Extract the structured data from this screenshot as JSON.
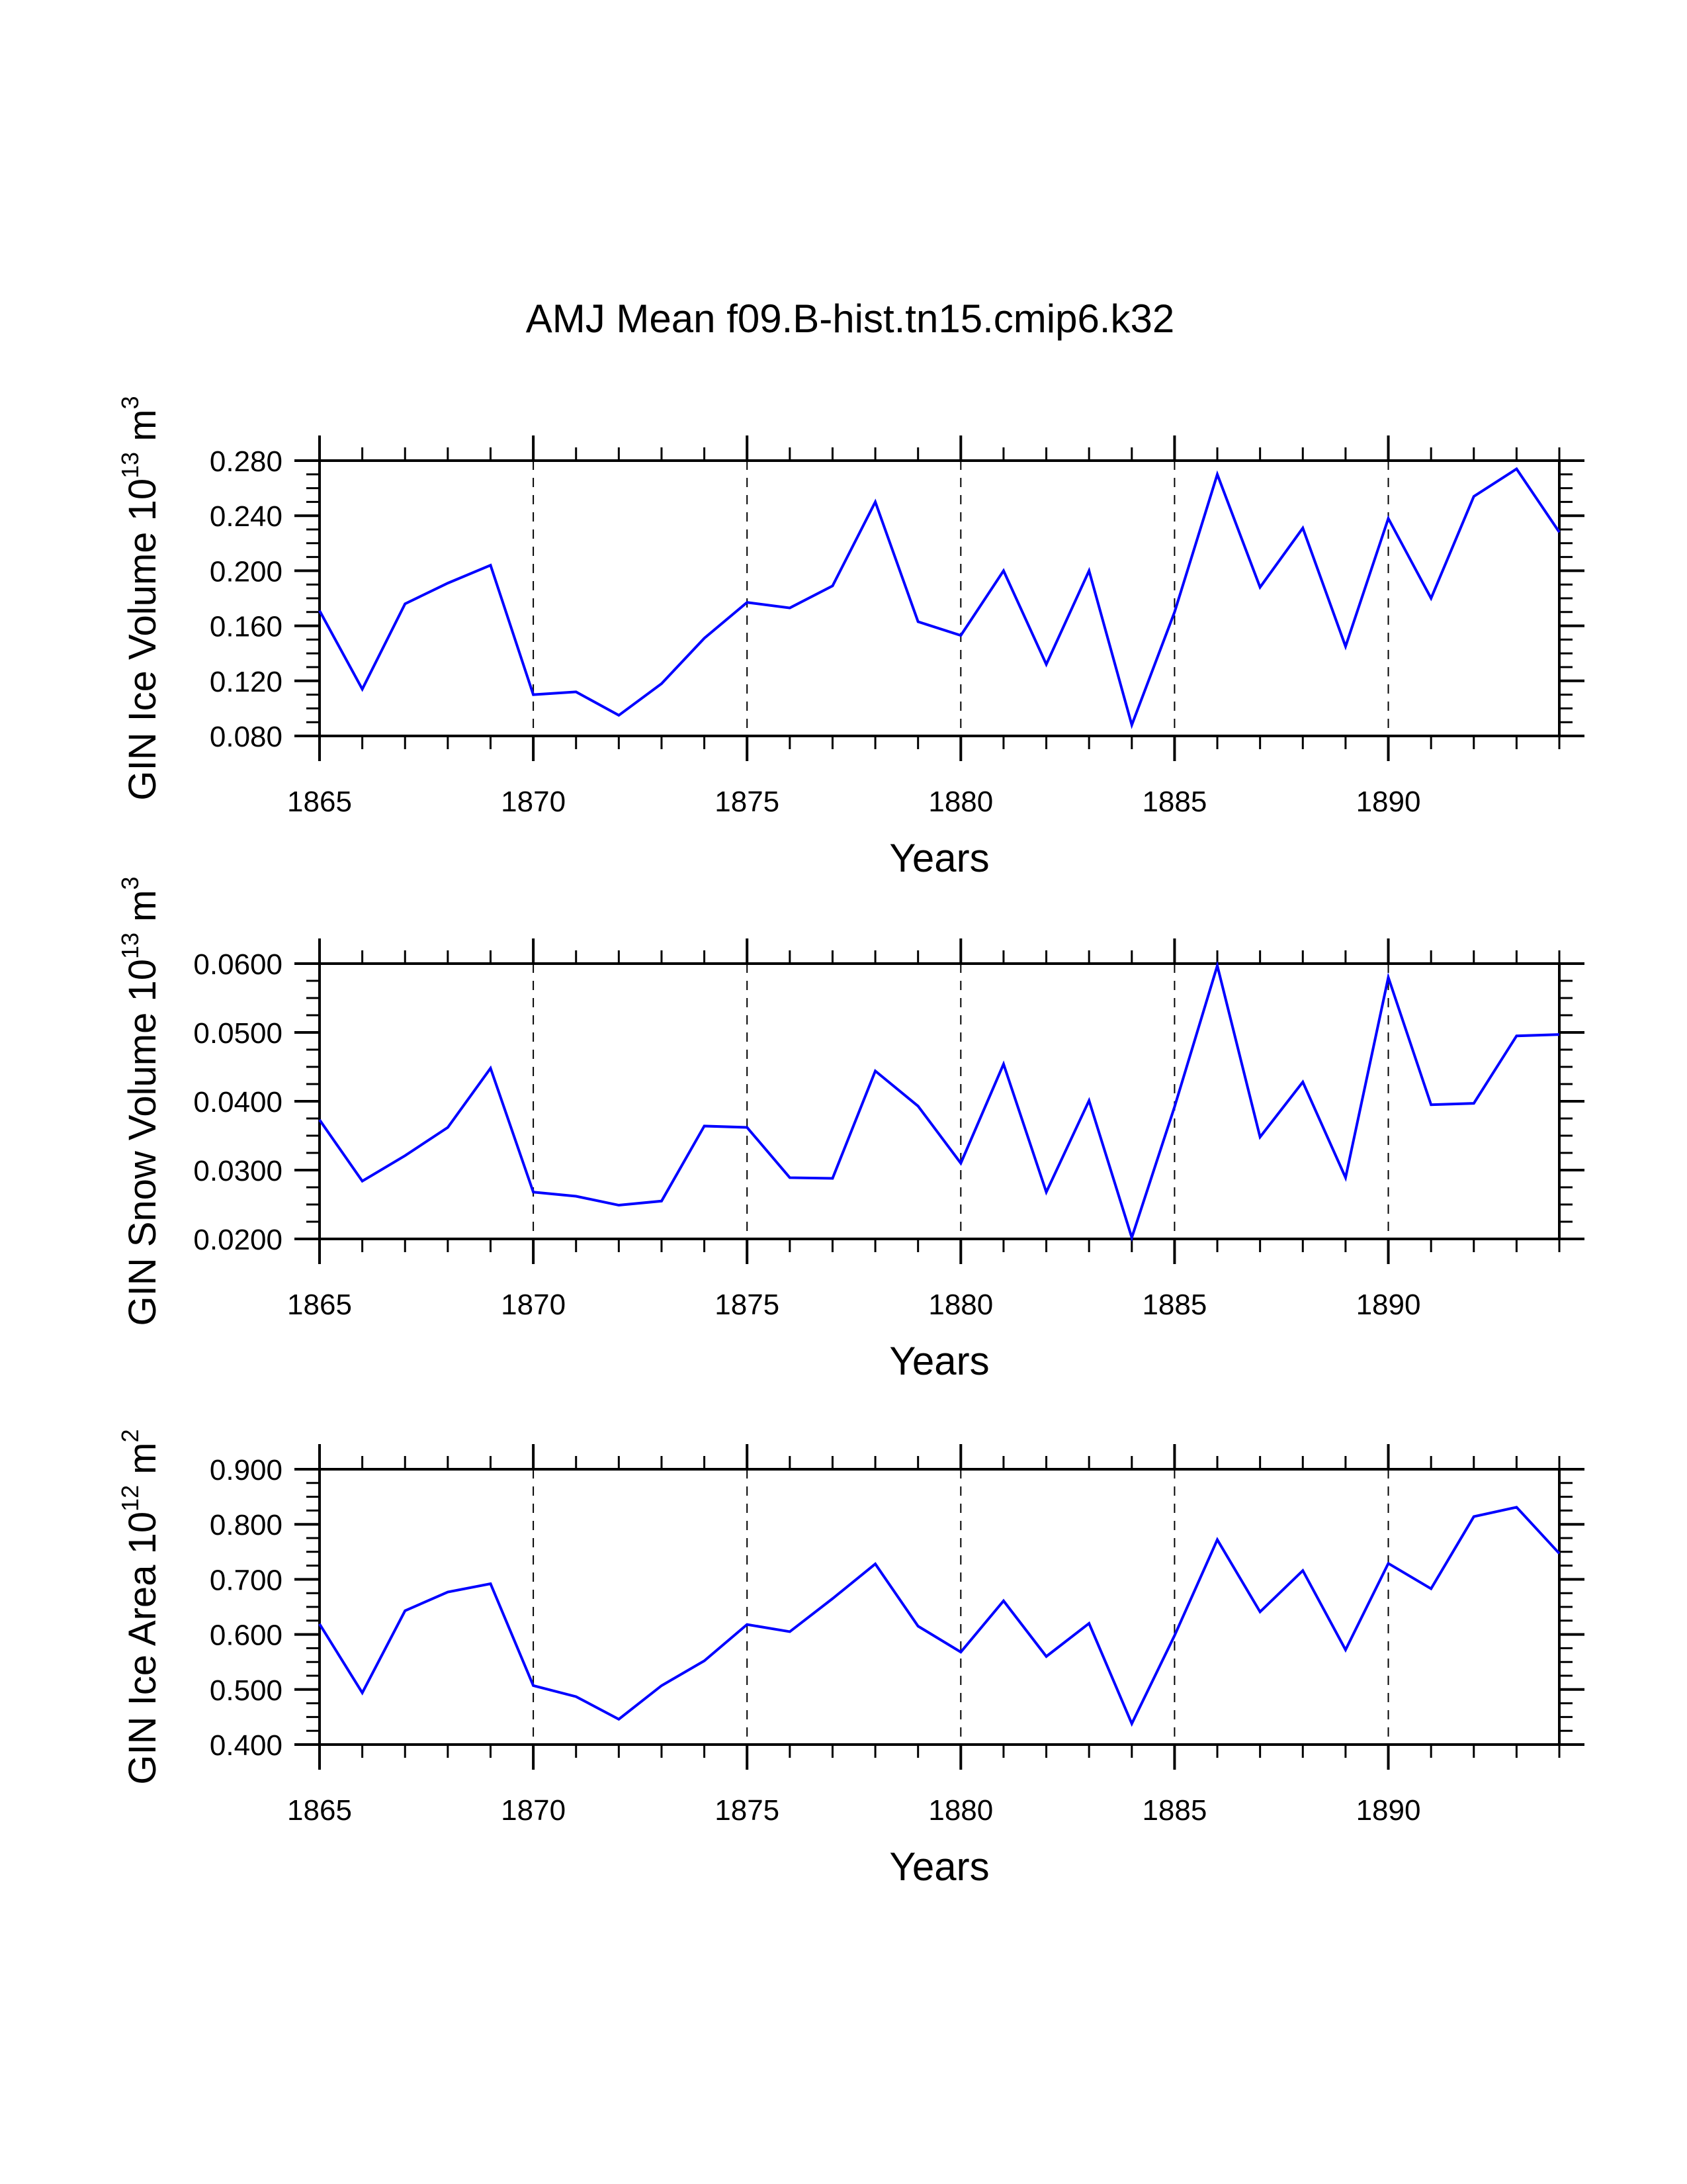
{
  "page": {
    "background": "#ffffff"
  },
  "chart_data": {
    "type": "line",
    "title": "AMJ Mean f09.B-hist.tn15.cmip6.k32",
    "line_color": "#0000ff",
    "x": [
      1865,
      1866,
      1867,
      1868,
      1869,
      1870,
      1871,
      1872,
      1873,
      1874,
      1875,
      1876,
      1877,
      1878,
      1879,
      1880,
      1881,
      1882,
      1883,
      1884,
      1885,
      1886,
      1887,
      1888,
      1889,
      1890,
      1891,
      1892,
      1893,
      1894
    ],
    "panels": [
      {
        "id": "ice-volume",
        "ylabel": "GIN Ice Volume 10",
        "ylabel_exponent": "13",
        "ylabel_unit": "m",
        "ylabel_unit_exponent": "3",
        "xlabel": "Years",
        "xlim": [
          1865,
          1894
        ],
        "ylim": [
          0.08,
          0.28
        ],
        "xticks": [
          1865,
          1870,
          1875,
          1880,
          1885,
          1890
        ],
        "xtick_labels": [
          "1865",
          "1870",
          "1875",
          "1880",
          "1885",
          "1890"
        ],
        "yticks": [
          0.08,
          0.12,
          0.16,
          0.2,
          0.24,
          0.28
        ],
        "ytick_labels": [
          "0.080",
          "0.120",
          "0.160",
          "0.200",
          "0.240",
          "0.280"
        ],
        "grid": "dashed vertical at major x ticks",
        "series": [
          {
            "name": "GIN Ice Volume",
            "values": [
              0.171,
              0.114,
              0.176,
              0.191,
              0.204,
              0.11,
              0.112,
              0.095,
              0.118,
              0.151,
              0.177,
              0.173,
              0.189,
              0.25,
              0.163,
              0.153,
              0.2,
              0.132,
              0.2,
              0.088,
              0.17,
              0.27,
              0.188,
              0.231,
              0.145,
              0.238,
              0.18,
              0.254,
              0.274,
              0.228
            ]
          }
        ]
      },
      {
        "id": "snow-volume",
        "ylabel": "GIN Snow Volume 10",
        "ylabel_exponent": "13",
        "ylabel_unit": "m",
        "ylabel_unit_exponent": "3",
        "xlabel": "Years",
        "xlim": [
          1865,
          1894
        ],
        "ylim": [
          0.02,
          0.06
        ],
        "xticks": [
          1865,
          1870,
          1875,
          1880,
          1885,
          1890
        ],
        "xtick_labels": [
          "1865",
          "1870",
          "1875",
          "1880",
          "1885",
          "1890"
        ],
        "yticks": [
          0.02,
          0.03,
          0.04,
          0.05,
          0.06
        ],
        "ytick_labels": [
          "0.0200",
          "0.0300",
          "0.0400",
          "0.0500",
          "0.0600"
        ],
        "grid": "dashed vertical at major x ticks",
        "series": [
          {
            "name": "GIN Snow Volume",
            "values": [
              0.0373,
              0.0284,
              0.0321,
              0.0362,
              0.0448,
              0.0268,
              0.0262,
              0.0249,
              0.0255,
              0.0364,
              0.0362,
              0.0289,
              0.0288,
              0.0444,
              0.0393,
              0.031,
              0.0454,
              0.0268,
              0.0401,
              0.0202,
              0.0392,
              0.0597,
              0.0348,
              0.0428,
              0.0289,
              0.058,
              0.0395,
              0.0397,
              0.0495,
              0.0497
            ]
          }
        ]
      },
      {
        "id": "ice-area",
        "ylabel": "GIN Ice Area 10",
        "ylabel_exponent": "12",
        "ylabel_unit": "m",
        "ylabel_unit_exponent": "2",
        "xlabel": "Years",
        "xlim": [
          1865,
          1894
        ],
        "ylim": [
          0.4,
          0.9
        ],
        "xticks": [
          1865,
          1870,
          1875,
          1880,
          1885,
          1890
        ],
        "xtick_labels": [
          "1865",
          "1870",
          "1875",
          "1880",
          "1885",
          "1890"
        ],
        "yticks": [
          0.4,
          0.5,
          0.6,
          0.7,
          0.8,
          0.9
        ],
        "ytick_labels": [
          "0.400",
          "0.500",
          "0.600",
          "0.700",
          "0.800",
          "0.900"
        ],
        "grid": "dashed vertical at major x ticks",
        "series": [
          {
            "name": "GIN Ice Area",
            "values": [
              0.619,
              0.494,
              0.643,
              0.677,
              0.692,
              0.507,
              0.487,
              0.446,
              0.507,
              0.552,
              0.618,
              0.605,
              0.665,
              0.728,
              0.615,
              0.568,
              0.661,
              0.56,
              0.62,
              0.438,
              0.598,
              0.772,
              0.641,
              0.716,
              0.572,
              0.729,
              0.683,
              0.814,
              0.831,
              0.747
            ]
          }
        ]
      }
    ]
  }
}
